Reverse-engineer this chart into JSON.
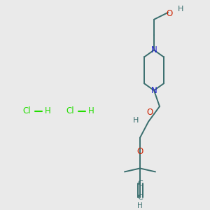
{
  "bg_color": "#eaeaea",
  "atom_colors": {
    "C": "#3a6e6e",
    "N": "#2222cc",
    "O": "#cc2200",
    "H": "#3a6e6e",
    "Cl": "#22dd00",
    "bond": "#3a6e6e"
  },
  "fig_size": [
    3.0,
    3.0
  ],
  "dpi": 100
}
